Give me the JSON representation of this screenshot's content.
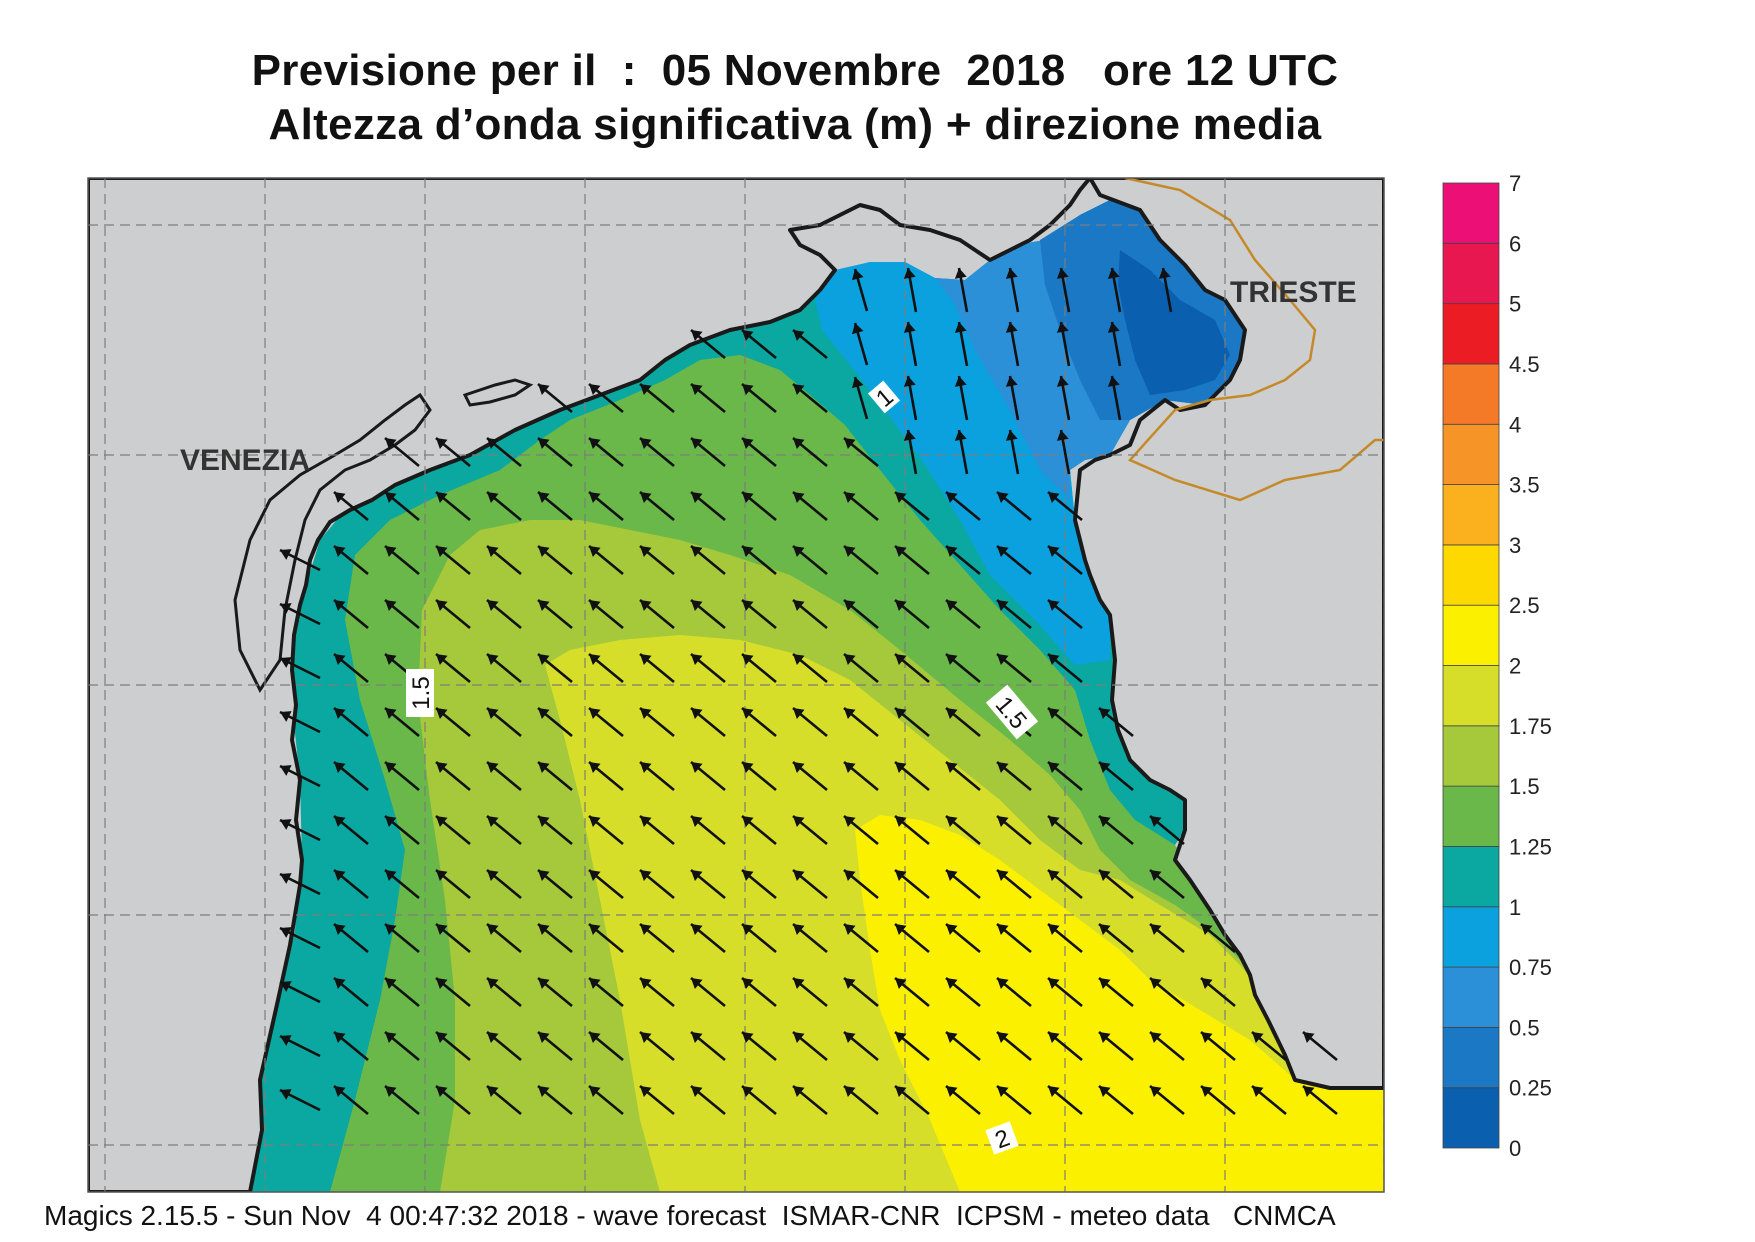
{
  "title_line1": "Previsione per il  :  05 Novembre  2018   ore 12 UTC",
  "title_line2": "Altezza d’onda significativa (m) + direzione media",
  "footer": "Magics 2.15.5 - Sun Nov  4 00:47:32 2018 - wave forecast  ISMAR-CNR  ICPSM - meteo data   CNMCA",
  "places": {
    "venezia": "VENEZIA",
    "trieste": "TRIESTE"
  },
  "contour_labels": [
    "1",
    "1.5",
    "1.5",
    "2"
  ],
  "colorbar": {
    "labels": [
      "0",
      "0.25",
      "0.5",
      "0.75",
      "1",
      "1.25",
      "1.5",
      "1.75",
      "2",
      "2.5",
      "3",
      "3.5",
      "4",
      "4.5",
      "5",
      "6",
      "7"
    ],
    "colors": [
      "#0a5fae",
      "#1a78c4",
      "#2b90d8",
      "#0ba1df",
      "#0aa8a0",
      "#6ab84a",
      "#a6c93c",
      "#d6de2a",
      "#fbf000",
      "#fdd900",
      "#fbb11e",
      "#f79428",
      "#f47a27",
      "#ec1c24",
      "#e8174f",
      "#ec0f76"
    ]
  },
  "colors": {
    "land": "#cdcecf",
    "coast": "#1a1a1a",
    "arrow": "#111111",
    "border": "#c48a2a"
  }
}
